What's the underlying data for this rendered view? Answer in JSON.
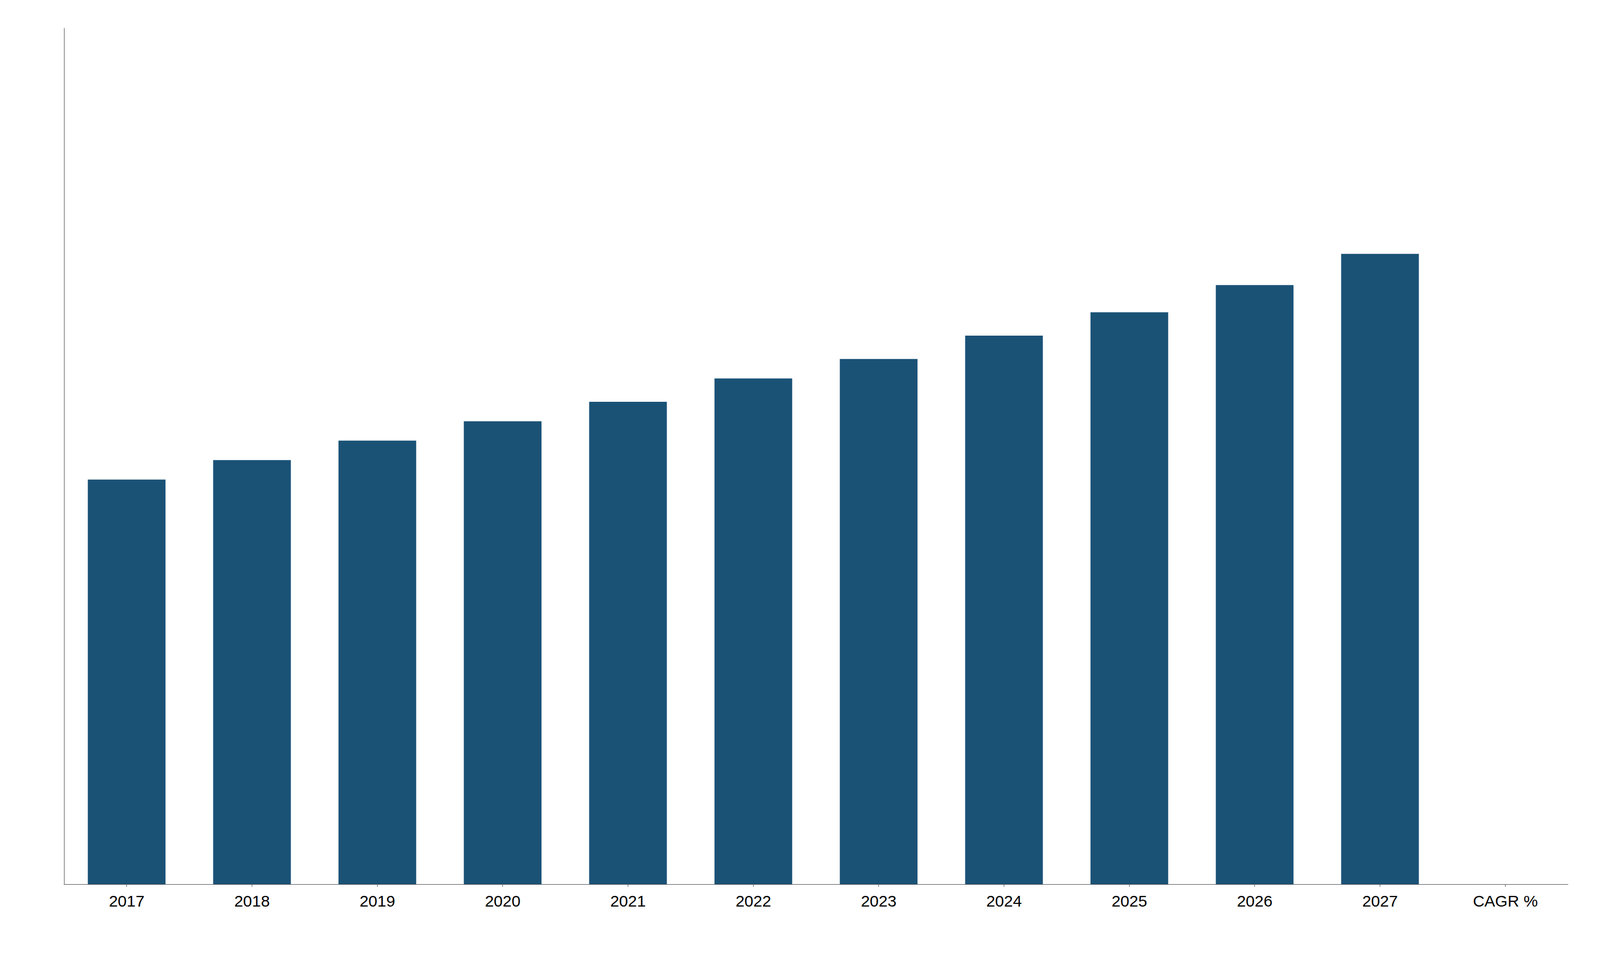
{
  "chart_data": {
    "type": "bar",
    "categories": [
      "2017",
      "2018",
      "2019",
      "2020",
      "2021",
      "2022",
      "2023",
      "2024",
      "2025",
      "2026",
      "2027",
      "CAGR %"
    ],
    "values": [
      52.0,
      54.5,
      57.0,
      59.5,
      62.0,
      65.0,
      67.5,
      70.5,
      73.5,
      77.0,
      81.0,
      null
    ],
    "color": "#1a5276",
    "ylim": [
      0,
      110
    ],
    "grid": false,
    "tick_labels": "x"
  }
}
